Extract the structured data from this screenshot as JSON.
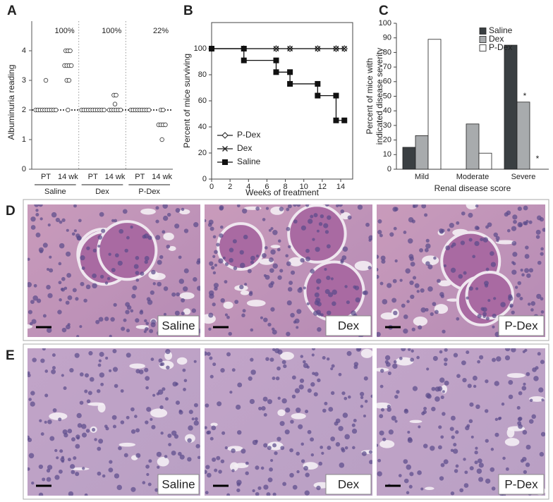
{
  "chart_data": [
    {
      "type": "strip",
      "panel": "A",
      "ylabel": "Albuminuria reading",
      "categories": [
        "PT",
        "14 wk",
        "PT",
        "14 wk",
        "PT",
        "14 wk"
      ],
      "groups": [
        "Saline",
        "Dex",
        "P-Dex"
      ],
      "annotations": [
        "100%",
        "100%",
        "22%"
      ],
      "values": [
        [
          2,
          2,
          2,
          2,
          2,
          2,
          2,
          2,
          2,
          2,
          3
        ],
        [
          4,
          4,
          4,
          3.5,
          3.5,
          3.5,
          3.5,
          3,
          3,
          2
        ],
        [
          2,
          2,
          2,
          2,
          2,
          2,
          2,
          2,
          2,
          2,
          2
        ],
        [
          2.5,
          2.5,
          2.2,
          2,
          2,
          2,
          2,
          2,
          2
        ],
        [
          2,
          2,
          2,
          2,
          2,
          2,
          2,
          2,
          2
        ],
        [
          2,
          2,
          1.5,
          1.5,
          1.5,
          1.5,
          1
        ]
      ],
      "reference_line": 2,
      "ylim": [
        0,
        5
      ],
      "yticks": [
        0,
        1,
        2,
        3,
        4
      ]
    },
    {
      "type": "line",
      "panel": "B",
      "xlabel": "Weeks of treatment",
      "ylabel": "Percent of mice surviving",
      "legend": "lower left",
      "series": [
        {
          "name": "P-Dex",
          "color": "#222222",
          "marker": "diamond",
          "x": [
            0,
            3.5,
            7,
            8.5,
            11.5,
            13.5,
            14.4
          ],
          "values": [
            100,
            100,
            100,
            100,
            100,
            100,
            100
          ]
        },
        {
          "name": "Dex",
          "color": "#222222",
          "marker": "x",
          "x": [
            0,
            3.5,
            7,
            8.5,
            11.5,
            13.5,
            14.4
          ],
          "values": [
            100,
            100,
            100,
            100,
            100,
            100,
            100
          ]
        },
        {
          "name": "Saline",
          "color": "#111111",
          "marker": "square",
          "x": [
            0,
            3.5,
            3.5,
            7,
            7,
            8.5,
            8.5,
            11.5,
            11.5,
            13.5,
            13.5,
            14.4
          ],
          "values": [
            100,
            100,
            91,
            91,
            82,
            82,
            73,
            73,
            64,
            64,
            45,
            45
          ]
        }
      ],
      "xlim": [
        0,
        15.3
      ],
      "xticks": [
        0,
        2,
        4,
        6,
        8,
        10,
        12,
        14
      ],
      "ylim": [
        0,
        120
      ],
      "yticks": [
        0,
        20,
        40,
        60,
        80,
        100
      ]
    },
    {
      "type": "bar",
      "panel": "C",
      "xlabel": "Renal disease score",
      "ylabel": [
        "Percent of mice with",
        "indicated disease severity"
      ],
      "legend": "upper right",
      "categories": [
        "Mild",
        "Moderate",
        "Severe"
      ],
      "series": [
        {
          "name": "Saline",
          "color": "#3a3f42",
          "values": [
            15,
            0,
            85
          ]
        },
        {
          "name": "Dex",
          "color": "#a8abad",
          "values": [
            23,
            31,
            46
          ]
        },
        {
          "name": "P-Dex",
          "color": "#ffffff",
          "values": [
            89,
            11,
            0
          ]
        }
      ],
      "annotations": [
        {
          "text": "*",
          "category": 2,
          "series": 1
        },
        {
          "text": "*",
          "category": 2,
          "series": 2
        }
      ],
      "ylim": [
        0,
        100
      ],
      "yticks": [
        0,
        10,
        20,
        30,
        40,
        50,
        60,
        70,
        80,
        90,
        100
      ]
    }
  ],
  "photo_panels": [
    {
      "letter": "D",
      "images": [
        "Saline",
        "Dex",
        "P-Dex"
      ]
    },
    {
      "letter": "E",
      "images": [
        "Saline",
        "Dex",
        "P-Dex"
      ]
    }
  ]
}
